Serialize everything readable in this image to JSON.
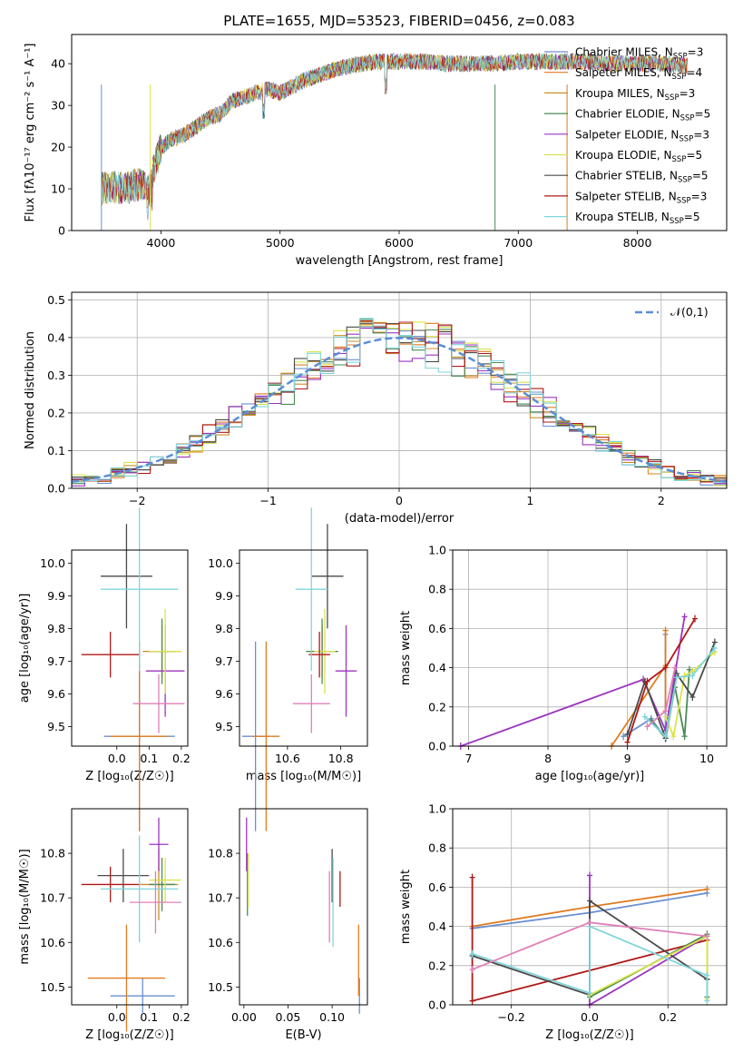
{
  "title": "PLATE=1655, MJD=53523, FIBERID=0456, z=0.083",
  "models": [
    {
      "name": "Chabrier MILES",
      "nssp": "3",
      "color": "#6a8fd0"
    },
    {
      "name": "Salpeter MILES",
      "nssp": "4",
      "color": "#e07b20"
    },
    {
      "name": "Kroupa MILES",
      "nssp": "3",
      "color": "#c8902a"
    },
    {
      "name": "Chabrier ELODIE",
      "nssp": "5",
      "color": "#4a8a55"
    },
    {
      "name": "Salpeter ELODIE",
      "nssp": "3",
      "color": "#9b35c0"
    },
    {
      "name": "Kroupa ELODIE",
      "nssp": "5",
      "color": "#dbe34a"
    },
    {
      "name": "Chabrier STELIB",
      "nssp": "5",
      "color": "#4a4a4a"
    },
    {
      "name": "Salpeter STELIB",
      "nssp": "3",
      "color": "#b01818"
    },
    {
      "name": "Kroupa STELIB",
      "nssp": "5",
      "color": "#7fd6dc"
    }
  ],
  "chart_data": [
    {
      "id": "spectrum",
      "type": "line",
      "xlabel": "wavelength [Angstrom, rest frame]",
      "ylabel": "Flux [fλ10⁻¹⁷ erg cm⁻² s⁻¹ A⁻¹]",
      "xlim": [
        3250,
        8750
      ],
      "ylim": [
        0,
        47
      ],
      "xticks": [
        4000,
        5000,
        6000,
        7000,
        8000
      ],
      "yticks": [
        0,
        10,
        20,
        30,
        40
      ],
      "grid": false,
      "legend": "top-right",
      "envelope": {
        "x": [
          3500,
          3600,
          3700,
          3800,
          3900,
          4000,
          4100,
          4200,
          4300,
          4400,
          4500,
          4600,
          4700,
          4800,
          4900,
          5000,
          5100,
          5200,
          5300,
          5400,
          5500,
          5600,
          5700,
          5800,
          5900,
          6000,
          6200,
          6400,
          6600,
          6800,
          7000,
          7200,
          7400,
          7600,
          7800,
          8000,
          8200,
          8400
        ],
        "y": [
          10,
          10.5,
          10,
          11,
          11,
          20,
          22,
          23,
          25,
          27,
          28,
          31,
          32,
          33,
          34,
          33,
          34.5,
          36,
          37,
          38,
          39,
          39.5,
          40,
          40.5,
          40.5,
          40.5,
          40.5,
          40,
          40,
          40,
          40.5,
          40.5,
          40.5,
          40.5,
          40,
          40,
          40,
          39.5
        ]
      }
    },
    {
      "id": "residuals",
      "type": "line",
      "xlabel": "(data-model)/error",
      "ylabel": "Normed distribution",
      "xlim": [
        -2.5,
        2.5
      ],
      "ylim": [
        0,
        0.52
      ],
      "xticks": [
        -2,
        -1,
        0,
        1,
        2
      ],
      "yticks": [
        0.0,
        0.1,
        0.2,
        0.3,
        0.4,
        0.5
      ],
      "grid": true,
      "legend": "top-right",
      "legend_label": "𝒩(0,1)",
      "bin_width": 0.1
    },
    {
      "id": "age-vs-Z",
      "type": "scatter",
      "xlabel": "Z [log₁₀(Z/Z☉)]",
      "ylabel": "age  [log₁₀(age/yr)]",
      "xlim": [
        -0.14,
        0.22
      ],
      "ylim": [
        9.44,
        10.04
      ],
      "xticks": [
        0.0,
        0.1,
        0.2
      ],
      "yticks": [
        9.5,
        9.6,
        9.7,
        9.8,
        9.9,
        10.0
      ],
      "grid": false,
      "points": [
        {
          "model": 0,
          "x": 0.07,
          "y": 9.47,
          "xerr": 0.11,
          "yerr": 0.29
        },
        {
          "model": 1,
          "x": 0.07,
          "y": 9.47,
          "xerr": 0.09,
          "yerr": 0.29
        },
        {
          "model": 2,
          "x": 0.14,
          "y": 9.73,
          "xerr": 0.06,
          "yerr": 0.08
        },
        {
          "model": 3,
          "x": 0.14,
          "y": 9.73,
          "xerr": 0.04,
          "yerr": 0.1
        },
        {
          "model": 4,
          "x": 0.15,
          "y": 9.67,
          "xerr": 0.06,
          "yerr": 0.14
        },
        {
          "model": 5,
          "x": 0.15,
          "y": 9.73,
          "xerr": 0.05,
          "yerr": 0.13
        },
        {
          "model": 6,
          "x": 0.03,
          "y": 9.96,
          "xerr": 0.08,
          "yerr": 0.16
        },
        {
          "model": 7,
          "x": -0.02,
          "y": 9.72,
          "xerr": 0.09,
          "yerr": 0.07
        },
        {
          "model": 8,
          "x": 0.07,
          "y": 9.92,
          "xerr": 0.12,
          "yerr": 0.25
        },
        {
          "model": -1,
          "color": "#e07fb8",
          "x": 0.13,
          "y": 9.57,
          "xerr": 0.08,
          "yerr": 0.09
        }
      ]
    },
    {
      "id": "age-vs-mass",
      "type": "scatter",
      "xlabel": "mass [log₁₀(M/M☉)]",
      "xlim": [
        10.42,
        10.9
      ],
      "ylim": [
        9.44,
        10.04
      ],
      "xticks": [
        10.6,
        10.8
      ],
      "yticks": [
        9.5,
        9.6,
        9.7,
        9.8,
        9.9,
        10.0
      ],
      "grid": false,
      "points": [
        {
          "model": 0,
          "x": 10.48,
          "y": 9.47,
          "xerr": 0.05,
          "yerr": 0.29
        },
        {
          "model": 1,
          "x": 10.52,
          "y": 9.47,
          "xerr": 0.05,
          "yerr": 0.29
        },
        {
          "model": 2,
          "x": 10.73,
          "y": 9.73,
          "xerr": 0.06,
          "yerr": 0.08
        },
        {
          "model": 3,
          "x": 10.73,
          "y": 9.73,
          "xerr": 0.06,
          "yerr": 0.1
        },
        {
          "model": 4,
          "x": 10.82,
          "y": 9.67,
          "xerr": 0.04,
          "yerr": 0.14
        },
        {
          "model": 5,
          "x": 10.74,
          "y": 9.73,
          "xerr": 0.04,
          "yerr": 0.13
        },
        {
          "model": 6,
          "x": 10.75,
          "y": 9.96,
          "xerr": 0.06,
          "yerr": 0.16
        },
        {
          "model": 7,
          "x": 10.72,
          "y": 9.72,
          "xerr": 0.04,
          "yerr": 0.07
        },
        {
          "model": 8,
          "x": 10.69,
          "y": 9.92,
          "xerr": 0.06,
          "yerr": 0.25
        },
        {
          "model": -1,
          "color": "#e07fb8",
          "x": 10.69,
          "y": 9.57,
          "xerr": 0.07,
          "yerr": 0.09
        }
      ]
    },
    {
      "id": "massweight-vs-age",
      "type": "line",
      "xlabel": "age  [log₁₀(age/yr)]",
      "ylabel": "mass weight",
      "xlim": [
        6.8,
        10.25
      ],
      "ylim": [
        0,
        1.0
      ],
      "xticks": [
        7,
        8,
        9,
        10
      ],
      "yticks": [
        0.0,
        0.2,
        0.4,
        0.6,
        0.8,
        1.0
      ],
      "grid": true,
      "series": [
        {
          "model": 0,
          "x": [
            8.95,
            9.3,
            9.48,
            9.48
          ],
          "y": [
            0.05,
            0.14,
            0.04,
            0.57
          ]
        },
        {
          "model": 1,
          "x": 8.8,
          "y": 0.0,
          "x_list": [
            8.8,
            9.48,
            9.48,
            9.48
          ],
          "y_list": [
            0.0,
            0.41,
            0.59,
            0.18
          ]
        },
        {
          "model": 4,
          "x": [
            6.9,
            9.2,
            9.48,
            9.72
          ],
          "y": [
            0.0,
            0.34,
            0.08,
            0.66
          ]
        },
        {
          "model": 3,
          "x": [
            9.3,
            9.48,
            9.6,
            9.72,
            9.78
          ],
          "y": [
            0.13,
            0.04,
            0.3,
            0.05,
            0.39
          ]
        },
        {
          "model": 5,
          "x": [
            9.48,
            9.58,
            9.72,
            9.82,
            10.1
          ],
          "y": [
            0.15,
            0.05,
            0.36,
            0.38,
            0.48
          ]
        },
        {
          "model": 6,
          "x": [
            9.0,
            9.22,
            9.48,
            9.62,
            9.82,
            10.1
          ],
          "y": [
            0.06,
            0.33,
            0.04,
            0.37,
            0.25,
            0.53
          ]
        },
        {
          "model": 7,
          "x": [
            9.0,
            9.25,
            9.48,
            9.85
          ],
          "y": [
            0.02,
            0.33,
            0.4,
            0.65
          ]
        },
        {
          "model": 8,
          "x": [
            9.22,
            9.48,
            9.62,
            9.82,
            10.1
          ],
          "y": [
            0.15,
            0.05,
            0.35,
            0.36,
            0.5
          ]
        },
        {
          "model": -1,
          "color": "#e07fb8",
          "x": [
            9.25,
            9.48,
            9.6
          ],
          "y": [
            0.1,
            0.18,
            0.4
          ]
        }
      ]
    },
    {
      "id": "mass-vs-Z",
      "type": "scatter",
      "xlabel": "Z [log₁₀(Z/Z☉)]",
      "ylabel": "mass [log₁₀(M/M☉)]",
      "xlim": [
        -0.14,
        0.22
      ],
      "ylim": [
        10.46,
        10.9
      ],
      "xticks": [
        0.0,
        0.1,
        0.2
      ],
      "yticks": [
        10.5,
        10.6,
        10.7,
        10.8
      ],
      "grid": false,
      "points": [
        {
          "model": 0,
          "x": 0.08,
          "y": 10.48,
          "xerr": 0.1,
          "yerr": 0.04
        },
        {
          "model": 1,
          "x": 0.03,
          "y": 10.52,
          "xerr": 0.12,
          "yerr": 0.12
        },
        {
          "model": 2,
          "x": 0.13,
          "y": 10.73,
          "xerr": 0.06,
          "yerr": 0.08
        },
        {
          "model": 3,
          "x": 0.14,
          "y": 10.73,
          "xerr": 0.04,
          "yerr": 0.06
        },
        {
          "model": 4,
          "x": 0.13,
          "y": 10.82,
          "xerr": 0.03,
          "yerr": 0.06
        },
        {
          "model": 5,
          "x": 0.15,
          "y": 10.74,
          "xerr": 0.05,
          "yerr": 0.05
        },
        {
          "model": 6,
          "x": 0.02,
          "y": 10.75,
          "xerr": 0.08,
          "yerr": 0.06
        },
        {
          "model": 7,
          "x": -0.02,
          "y": 10.73,
          "xerr": 0.09,
          "yerr": 0.04
        },
        {
          "model": 8,
          "x": 0.07,
          "y": 10.72,
          "xerr": 0.12,
          "yerr": 0.12
        },
        {
          "model": -1,
          "color": "#e07fb8",
          "x": 0.12,
          "y": 10.69,
          "xerr": 0.08,
          "yerr": 0.07
        }
      ]
    },
    {
      "id": "mass-vs-ebv",
      "type": "scatter",
      "xlabel": "E(B-V)",
      "xlim": [
        -0.005,
        0.14
      ],
      "ylim": [
        10.46,
        10.9
      ],
      "xticks": [
        0.0,
        0.05,
        0.1
      ],
      "yticks": [
        10.5,
        10.6,
        10.7,
        10.8
      ],
      "grid": false,
      "points": [
        {
          "model": 0,
          "x": 0.131,
          "y": 10.48,
          "xerr": 0,
          "yerr": 0.04
        },
        {
          "model": 1,
          "x": 0.13,
          "y": 10.56,
          "xerr": 0,
          "yerr": 0.08
        },
        {
          "model": 3,
          "x": 0.004,
          "y": 10.73,
          "xerr": 0,
          "yerr": 0.07
        },
        {
          "model": 4,
          "x": 0.003,
          "y": 10.82,
          "xerr": 0,
          "yerr": 0.06
        },
        {
          "model": 5,
          "x": 0.005,
          "y": 10.74,
          "xerr": 0,
          "yerr": 0.06
        },
        {
          "model": 6,
          "x": 0.1,
          "y": 10.75,
          "xerr": 0,
          "yerr": 0.06
        },
        {
          "model": 7,
          "x": 0.109,
          "y": 10.72,
          "xerr": 0,
          "yerr": 0.04
        },
        {
          "model": 8,
          "x": 0.101,
          "y": 10.69,
          "xerr": 0,
          "yerr": 0.1
        },
        {
          "model": -1,
          "color": "#e07fb8",
          "x": 0.097,
          "y": 10.68,
          "xerr": 0,
          "yerr": 0.08
        }
      ]
    },
    {
      "id": "massweight-vs-Z",
      "type": "line",
      "xlabel": "Z [log₁₀(Z/Z☉)]",
      "ylabel": "mass weight",
      "xlim": [
        -0.35,
        0.35
      ],
      "ylim": [
        0,
        1.0
      ],
      "xticks": [
        -0.2,
        0.0,
        0.2
      ],
      "yticks": [
        0.0,
        0.2,
        0.4,
        0.6,
        0.8,
        1.0
      ],
      "grid": true,
      "series": [
        {
          "model": 0,
          "x": [
            -0.3,
            0.0,
            0.3
          ],
          "y": [
            0.39,
            0.47,
            0.57
          ]
        },
        {
          "model": 1,
          "x": [
            -0.3,
            0.0,
            0.3
          ],
          "y": [
            0.4,
            0.5,
            0.59
          ]
        },
        {
          "model": 7,
          "x": [
            -0.3,
            -0.3,
            0.3
          ],
          "y": [
            0.65,
            0.02,
            0.33
          ]
        },
        {
          "model": 4,
          "x": [
            0.0,
            0.0,
            0.3
          ],
          "y": [
            0.66,
            0.0,
            0.35
          ]
        },
        {
          "model": 6,
          "x": [
            -0.3,
            0.0,
            0.0,
            0.3,
            0.3
          ],
          "y": [
            0.25,
            0.05,
            0.53,
            0.13,
            0.13
          ]
        },
        {
          "model": 3,
          "x": [
            0.0,
            0.3,
            0.3
          ],
          "y": [
            0.04,
            0.36,
            0.04
          ]
        },
        {
          "model": 5,
          "x": [
            0.0,
            0.3,
            0.3
          ],
          "y": [
            0.05,
            0.35,
            0.03
          ]
        },
        {
          "model": 8,
          "x": [
            -0.3,
            0.0,
            0.0,
            0.3,
            0.3
          ],
          "y": [
            0.26,
            0.06,
            0.4,
            0.15,
            0.02
          ]
        },
        {
          "model": -1,
          "color": "#e07fb8",
          "x": [
            -0.3,
            0.0,
            0.3
          ],
          "y": [
            0.18,
            0.42,
            0.35
          ]
        }
      ]
    }
  ]
}
